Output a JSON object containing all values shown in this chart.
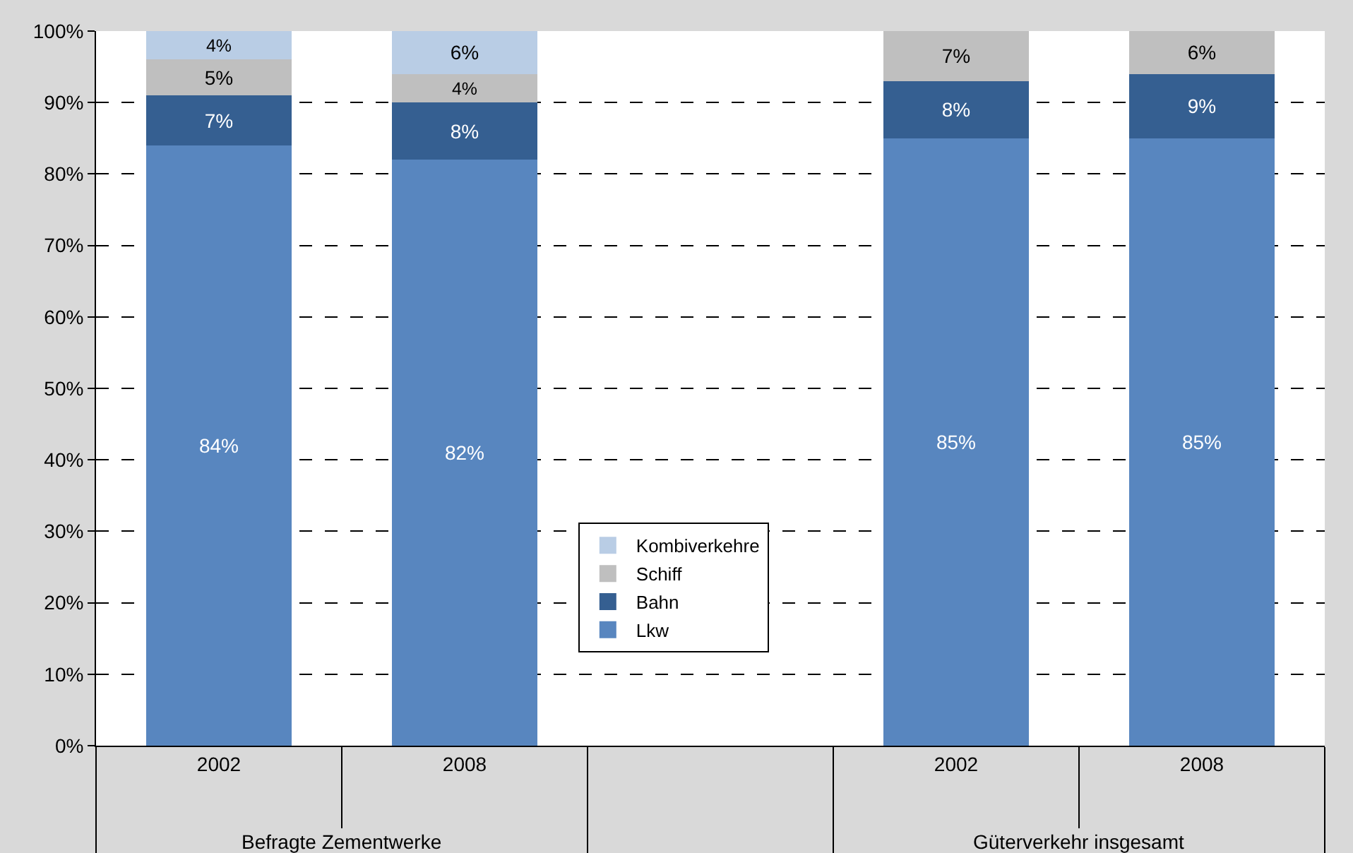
{
  "chart_data": {
    "type": "bar",
    "stacked": true,
    "categories": [
      "2002",
      "2008",
      null,
      "2002",
      "2008"
    ],
    "series": [
      {
        "name": "Lkw",
        "color": "#5886bf",
        "values": [
          84,
          82,
          null,
          85,
          85
        ],
        "value_labels": [
          "84%",
          "82%",
          null,
          "85%",
          "85%"
        ]
      },
      {
        "name": "Bahn",
        "color": "#355f91",
        "values": [
          7,
          8,
          null,
          8,
          9
        ],
        "value_labels": [
          "7%",
          "8%",
          null,
          "8%",
          "9%"
        ]
      },
      {
        "name": "Schiff",
        "color": "#bfbfbf",
        "values": [
          5,
          4,
          null,
          7,
          6
        ],
        "value_labels": [
          "5%",
          "4%",
          null,
          "7%",
          "6%"
        ]
      },
      {
        "name": "Kombiverkehre",
        "color": "#b9cde5",
        "values": [
          4,
          6,
          null,
          null,
          null
        ],
        "value_labels": [
          "4%",
          "6%",
          null,
          null,
          null
        ]
      }
    ],
    "ylim": [
      0,
      100
    ],
    "yticks": [
      {
        "value": 0,
        "label": "0%"
      },
      {
        "value": 10,
        "label": "10%"
      },
      {
        "value": 20,
        "label": "20%"
      },
      {
        "value": 30,
        "label": "30%"
      },
      {
        "value": 40,
        "label": "40%"
      },
      {
        "value": 50,
        "label": "50%"
      },
      {
        "value": 60,
        "label": "60%"
      },
      {
        "value": 70,
        "label": "70%"
      },
      {
        "value": 80,
        "label": "80%"
      },
      {
        "value": 90,
        "label": "90%"
      },
      {
        "value": 100,
        "label": "100%"
      }
    ],
    "grid": "y",
    "legend": "center",
    "annotations": [
      "Befragte Zementwerke",
      "Güterverkehr insgesamt"
    ]
  }
}
